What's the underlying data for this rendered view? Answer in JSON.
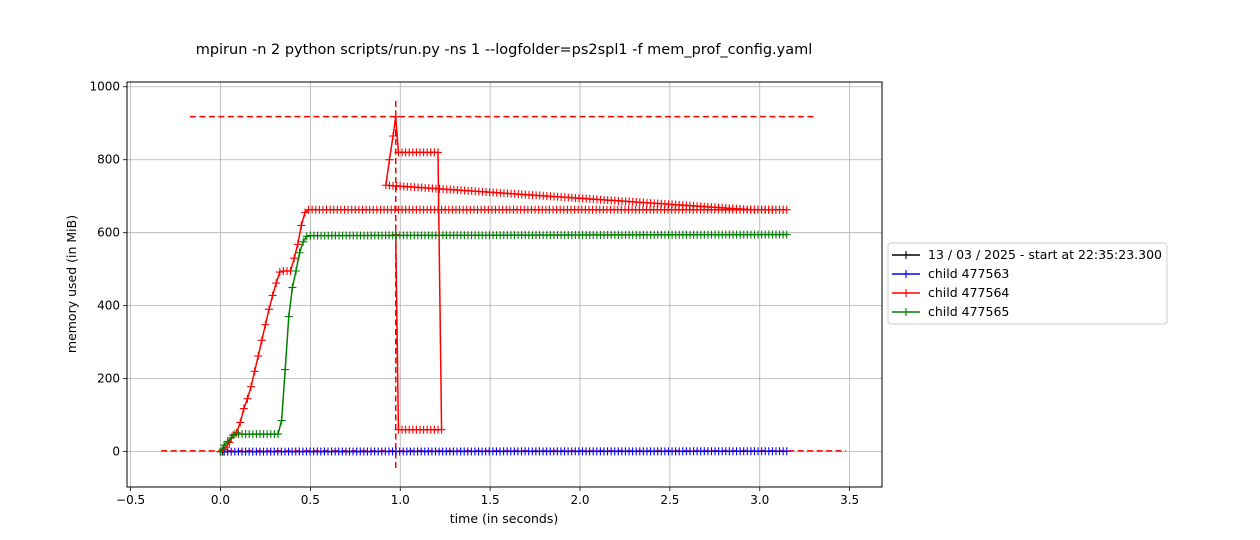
{
  "chart_data": {
    "type": "line",
    "title": "mpirun -n 2 python scripts/run.py -ns 1 --logfolder=ps2spl1 -f mem_prof_config.yaml",
    "xlabel": "time (in seconds)",
    "ylabel": "memory used (in MiB)",
    "xlim": [
      -0.52,
      3.68
    ],
    "ylim": [
      -97,
      1013
    ],
    "xticks": [
      -0.5,
      0.0,
      0.5,
      1.0,
      1.5,
      2.0,
      2.5,
      3.0,
      3.5
    ],
    "xtick_labels": [
      "−0.5",
      "0.0",
      "0.5",
      "1.0",
      "1.5",
      "2.0",
      "2.5",
      "3.0",
      "3.5"
    ],
    "yticks": [
      0,
      200,
      400,
      600,
      800,
      1000
    ],
    "ytick_labels": [
      "0",
      "200",
      "400",
      "600",
      "800",
      "1000"
    ],
    "grid": true,
    "legend_position": "outside-right",
    "series": [
      {
        "name": "13 / 03 / 2025 - start at 22:35:23.300",
        "color": "#000000",
        "points": [
          [
            0.0,
            0
          ],
          [
            0.01,
            0
          ],
          [
            0.02,
            0
          ]
        ]
      },
      {
        "name": "child 477563",
        "color": "#0000ff",
        "points": [
          [
            0.02,
            0
          ],
          [
            3.15,
            1
          ]
        ]
      },
      {
        "name": "child 477564",
        "color": "#ff0000",
        "points": [
          [
            0.0,
            0
          ],
          [
            0.03,
            12
          ],
          [
            0.05,
            25
          ],
          [
            0.07,
            45
          ],
          [
            0.09,
            52
          ],
          [
            0.11,
            80
          ],
          [
            0.13,
            118
          ],
          [
            0.15,
            145
          ],
          [
            0.17,
            178
          ],
          [
            0.19,
            220
          ],
          [
            0.21,
            262
          ],
          [
            0.23,
            305
          ],
          [
            0.25,
            348
          ],
          [
            0.27,
            390
          ],
          [
            0.29,
            428
          ],
          [
            0.31,
            462
          ],
          [
            0.33,
            492
          ],
          [
            0.35,
            495
          ],
          [
            0.37,
            495
          ],
          [
            0.39,
            495
          ],
          [
            0.41,
            530
          ],
          [
            0.43,
            568
          ],
          [
            0.45,
            620
          ],
          [
            0.47,
            655
          ],
          [
            0.49,
            663
          ],
          [
            3.15,
            663
          ],
          [
            2.95,
            663
          ],
          [
            0.92,
            730
          ],
          [
            0.94,
            800
          ],
          [
            0.96,
            865
          ],
          [
            0.975,
            918
          ],
          [
            0.99,
            820
          ],
          [
            1.21,
            820
          ],
          [
            1.23,
            60
          ],
          [
            0.99,
            60
          ],
          [
            0.975,
            595
          ]
        ]
      },
      {
        "name": "child 477565",
        "color": "#008000",
        "points": [
          [
            0.0,
            0
          ],
          [
            0.02,
            18
          ],
          [
            0.04,
            28
          ],
          [
            0.06,
            38
          ],
          [
            0.08,
            48
          ],
          [
            0.32,
            48
          ],
          [
            0.34,
            85
          ],
          [
            0.36,
            225
          ],
          [
            0.38,
            370
          ],
          [
            0.4,
            450
          ],
          [
            0.42,
            495
          ],
          [
            0.44,
            545
          ],
          [
            0.46,
            575
          ],
          [
            0.48,
            590
          ],
          [
            0.5,
            592
          ],
          [
            3.15,
            595
          ]
        ]
      }
    ],
    "reference_lines": [
      {
        "kind": "horizontal",
        "y": 918,
        "from": -0.17,
        "to": 3.3,
        "color": "#ff0000"
      },
      {
        "kind": "horizontal",
        "y": 2,
        "from": -0.33,
        "to": 3.48,
        "color": "#ff0000"
      },
      {
        "kind": "vertical",
        "x": 0.975,
        "from": -45,
        "to": 965,
        "color": "#ff0000"
      }
    ]
  }
}
